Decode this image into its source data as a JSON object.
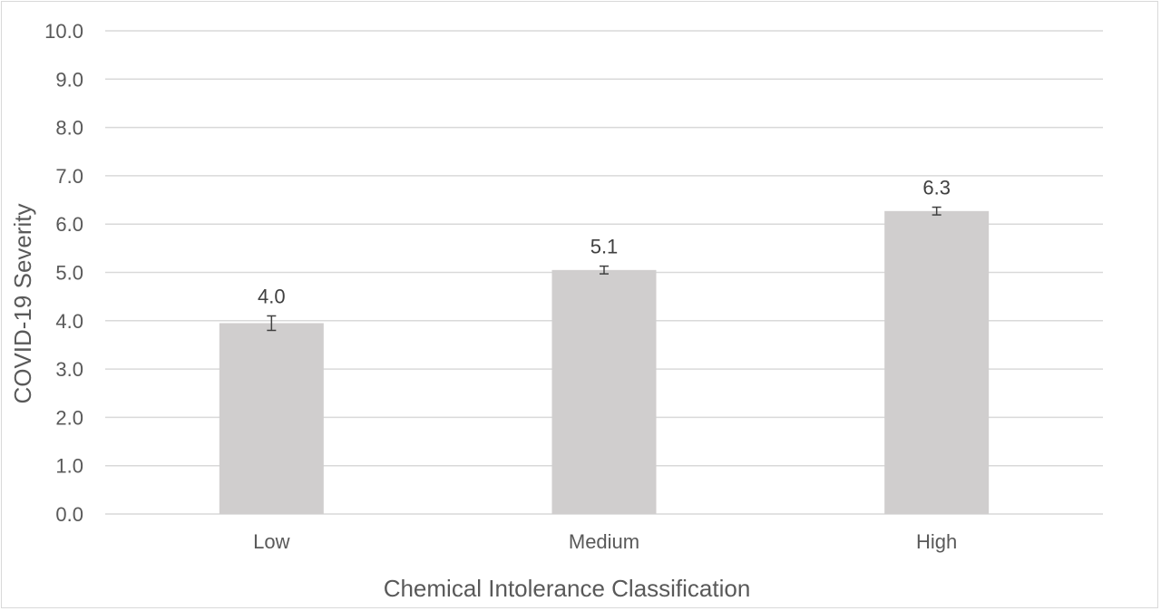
{
  "chart_data": {
    "type": "bar",
    "title": "",
    "xlabel": "Chemical Intolerance Classification",
    "ylabel": "COVID-19 Severity",
    "categories": [
      "Low",
      "Medium",
      "High"
    ],
    "values": [
      3.95,
      5.05,
      6.27
    ],
    "data_labels": [
      "4.0",
      "5.1",
      "6.3"
    ],
    "error_bars": [
      0.15,
      0.08,
      0.08
    ],
    "ylim": [
      0,
      10
    ],
    "yticks": [
      "0.0",
      "1.0",
      "2.0",
      "3.0",
      "4.0",
      "5.0",
      "6.0",
      "7.0",
      "8.0",
      "9.0",
      "10.0"
    ],
    "grid": true,
    "legend": "none",
    "bar_color": "#d0cece",
    "gridline_color": "#d9d9d9",
    "error_bar_color": "#404040"
  }
}
